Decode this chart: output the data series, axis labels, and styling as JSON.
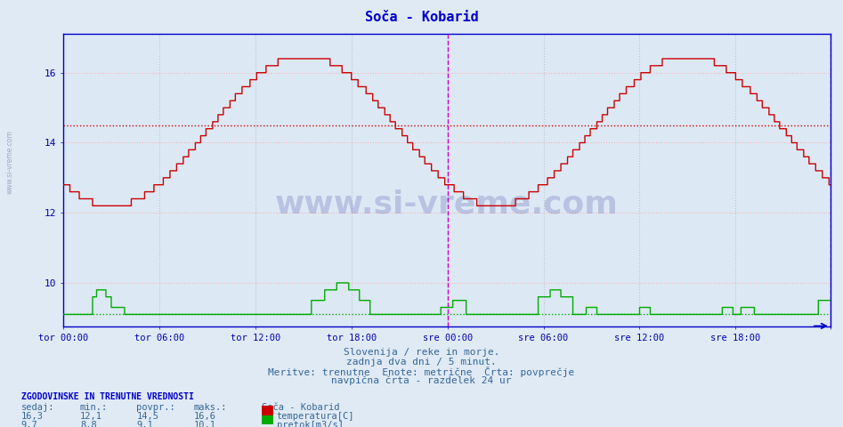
{
  "title": "Soča - Kobarid",
  "title_color": "#0000cc",
  "bg_color": "#dce9f5",
  "grid_color": "#ffb0b0",
  "temp_color": "#cc0000",
  "flow_color": "#00aa00",
  "vline_color": "#cc00cc",
  "axis_color": "#0000cc",
  "tick_color": "#0000aa",
  "fig_bg_color": "#e0eaf4",
  "n_points": 576,
  "temp_min": 12.1,
  "temp_max": 16.6,
  "temp_avg": 14.5,
  "flow_min": 8.8,
  "flow_max": 10.1,
  "flow_avg": 9.1,
  "temp_current": 16.3,
  "flow_current": 9.7,
  "ylim_min": 8.75,
  "ylim_max": 17.1,
  "yticks": [
    10,
    12,
    14,
    16
  ],
  "xtick_positions": [
    0,
    72,
    144,
    216,
    288,
    360,
    432,
    504,
    575
  ],
  "xtick_labels": [
    "tor 00:00",
    "tor 06:00",
    "tor 12:00",
    "tor 18:00",
    "sre 00:00",
    "sre 06:00",
    "sre 12:00",
    "sre 18:00",
    ""
  ],
  "vline_positions": [
    288,
    575
  ],
  "subtitle1": "Slovenija / reke in morje.",
  "subtitle2": "zadnja dva dni / 5 minut.",
  "subtitle3": "Meritve: trenutne  Enote: metrične  Črta: povprečje",
  "subtitle4": "navpična črta - razdelek 24 ur",
  "footer_title": "ZGODOVINSKE IN TRENUTNE VREDNOSTI",
  "col_sedaj": "sedaj:",
  "col_min": "min.:",
  "col_povpr": "povpr.:",
  "col_maks": "maks.:",
  "col_name": "Soča - Kobarid",
  "row1_label": "temperatura[C]",
  "row2_label": "pretok[m3/s]",
  "watermark": "www.si-vreme.com",
  "sidebar_watermark": "www.si-vreme.com"
}
